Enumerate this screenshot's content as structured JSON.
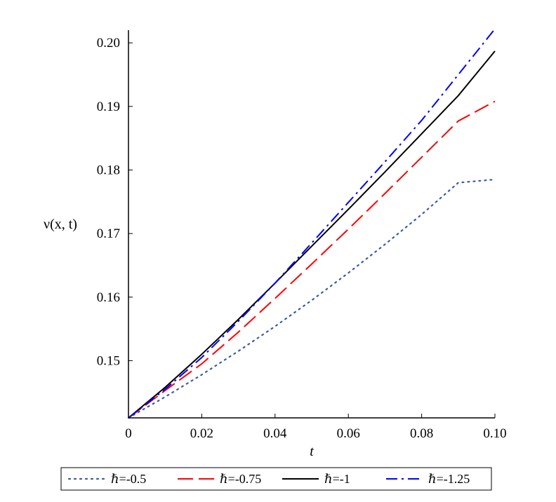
{
  "chart_data": {
    "type": "line",
    "title": "",
    "xlabel": "t",
    "ylabel": "ν(x, t)",
    "xlim": [
      0,
      0.1
    ],
    "ylim": [
      0.141,
      0.202
    ],
    "xticks": [
      0,
      0.02,
      0.04,
      0.06,
      0.08,
      0.1
    ],
    "xtick_labels": [
      "0",
      "0.02",
      "0.04",
      "0.06",
      "0.08",
      "0.10"
    ],
    "yticks": [
      0.15,
      0.16,
      0.17,
      0.18,
      0.19,
      0.2
    ],
    "ytick_labels": [
      "0.15",
      "0.16",
      "0.17",
      "0.18",
      "0.19",
      "0.20"
    ],
    "grid": false,
    "legend_position": "bottom",
    "x": [
      0,
      0.01,
      0.02,
      0.03,
      0.04,
      0.05,
      0.06,
      0.07,
      0.08,
      0.09,
      0.1
    ],
    "series": [
      {
        "name": "ℏ=-0.5",
        "style": "dotted",
        "color": "#3b5ba5",
        "values": [
          0.141,
          0.1443,
          0.1478,
          0.1515,
          0.1554,
          0.1595,
          0.1638,
          0.1683,
          0.173,
          0.178,
          0.1785
        ]
      },
      {
        "name": "ℏ=-0.75",
        "style": "dashed",
        "color": "#ff0000",
        "values": [
          0.141,
          0.1453,
          0.1495,
          0.1545,
          0.1598,
          0.1652,
          0.1707,
          0.1763,
          0.182,
          0.1877,
          0.1908
        ]
      },
      {
        "name": "ℏ=-1",
        "style": "solid",
        "color": "#000000",
        "values": [
          0.141,
          0.1458,
          0.151,
          0.1565,
          0.1622,
          0.168,
          0.1738,
          0.1797,
          0.1857,
          0.1917,
          0.1987
        ]
      },
      {
        "name": "ℏ=-1.25",
        "style": "dashdot",
        "color": "#0000ff",
        "values": [
          0.141,
          0.1455,
          0.1505,
          0.1562,
          0.1622,
          0.1685,
          0.1749,
          0.1813,
          0.1878,
          0.195,
          0.2022
        ]
      }
    ]
  }
}
